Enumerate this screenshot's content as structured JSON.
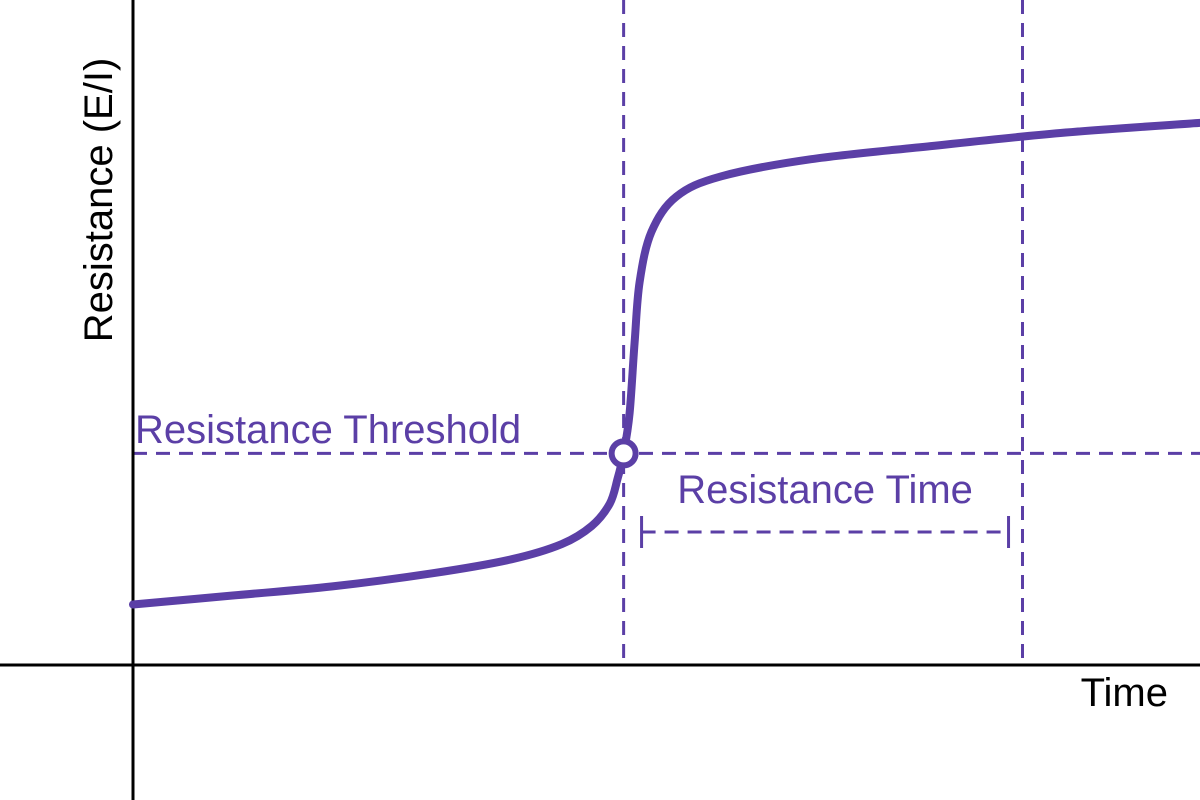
{
  "colors": {
    "curve": "#5b3fa6",
    "annotation": "#5b3fa6",
    "axis": "#000000"
  },
  "chart_data": {
    "type": "line",
    "xlabel": "Time",
    "ylabel": "Resistance (E/I)",
    "grid": false,
    "legend": "none",
    "xlim": [
      0,
      10.7
    ],
    "ylim": [
      0,
      6.6
    ],
    "series": [
      {
        "points": [
          [
            0,
            0.6
          ],
          [
            1,
            0.69
          ],
          [
            2,
            0.78
          ],
          [
            3,
            0.91
          ],
          [
            3.8,
            1.05
          ],
          [
            4.3,
            1.2
          ],
          [
            4.6,
            1.38
          ],
          [
            4.78,
            1.6
          ],
          [
            4.86,
            1.85
          ],
          [
            4.92,
            2.1
          ],
          [
            4.98,
            2.5
          ],
          [
            5.03,
            3.2
          ],
          [
            5.08,
            3.8
          ],
          [
            5.2,
            4.3
          ],
          [
            5.45,
            4.65
          ],
          [
            5.9,
            4.85
          ],
          [
            6.8,
            5.02
          ],
          [
            8,
            5.15
          ],
          [
            9.3,
            5.28
          ],
          [
            10.7,
            5.38
          ]
        ]
      }
    ],
    "threshold": {
      "label": "Resistance Threshold",
      "y": 2.1
    },
    "threshold_crossing": {
      "x": 4.92,
      "y": 2.1,
      "marker": "open-circle"
    },
    "vertical_lines": [
      4.92,
      8.92
    ],
    "interval": {
      "label": "Resistance Time",
      "start": 5.1,
      "end": 8.78,
      "y": 1.32
    }
  }
}
